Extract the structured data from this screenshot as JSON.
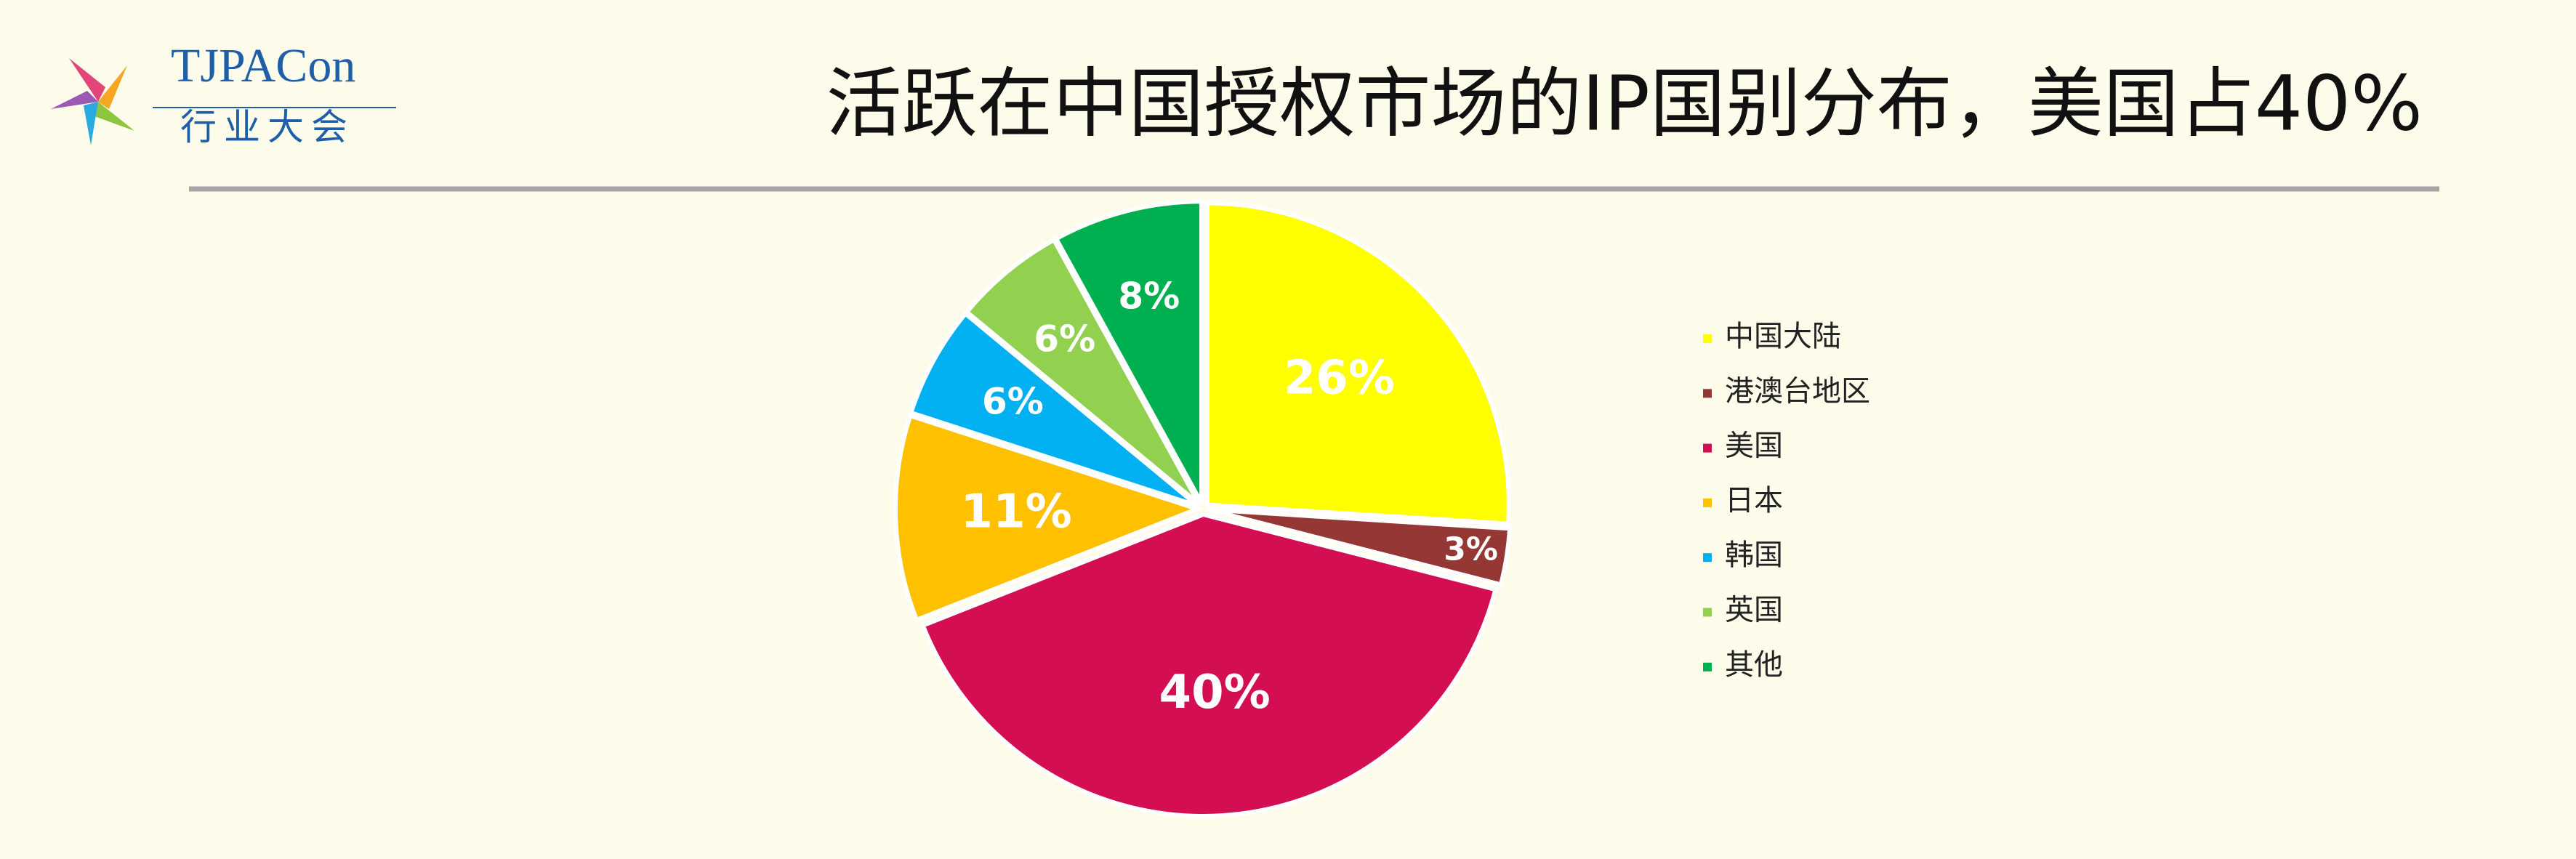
{
  "logo": {
    "name": "TJPACon",
    "subtitle": "行业大会"
  },
  "chart_data": {
    "type": "pie",
    "title": "活跃在中国授权市场的IP国别分布，美国占40%",
    "categories": [
      "中国大陆",
      "港澳台地区",
      "美国",
      "日本",
      "韩国",
      "英国",
      "其他"
    ],
    "values": [
      26,
      3,
      40,
      11,
      6,
      6,
      8
    ],
    "value_labels": [
      "26%",
      "3%",
      "40%",
      "11%",
      "6%",
      "6%",
      "8%"
    ],
    "colors": [
      "#ffff00",
      "#953735",
      "#d40e52",
      "#ffc000",
      "#00b0f0",
      "#92d050",
      "#00b050"
    ],
    "legend": "right"
  }
}
